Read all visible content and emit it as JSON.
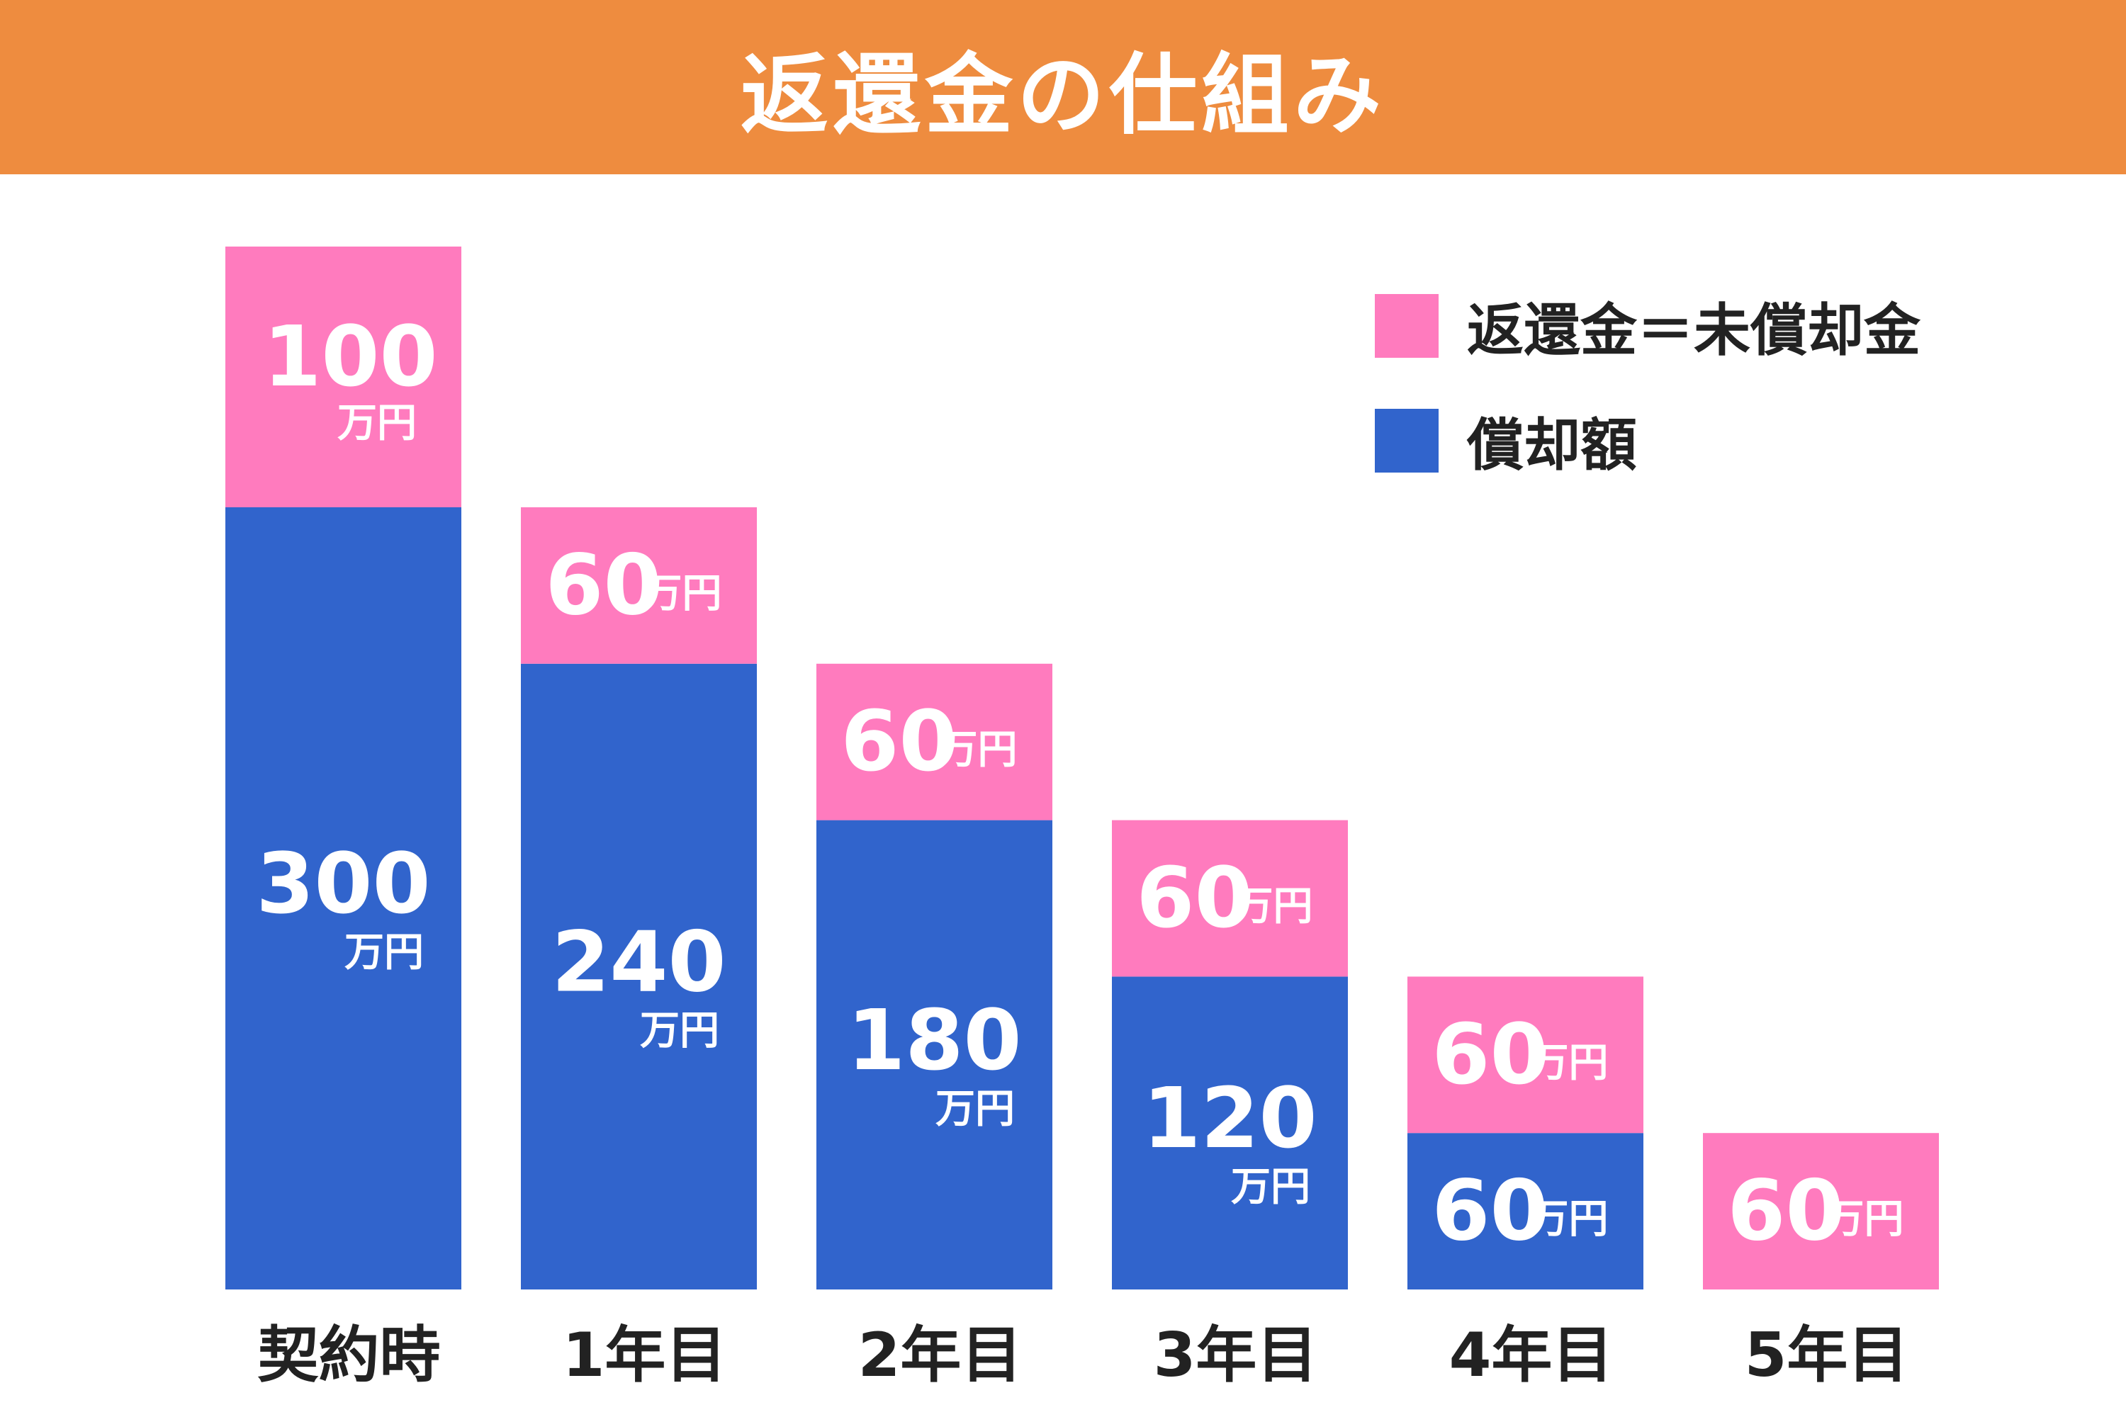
{
  "header": {
    "title": "返還金の仕組み"
  },
  "colors": {
    "header_bg": "#EE8C3F",
    "refund": "#FF7BBE",
    "depreciation": "#3164CC",
    "label_text": "#FFFFFF",
    "axis_text": "#222222"
  },
  "legend": [
    {
      "label": "返還金＝未償却金",
      "color": "#FF7BBE"
    },
    {
      "label": "償却額",
      "color": "#3164CC"
    }
  ],
  "chart_data": {
    "type": "bar",
    "stacked": true,
    "title": "返還金の仕組み",
    "unit": "万円",
    "categories": [
      "契約時",
      "1年目",
      "2年目",
      "3年目",
      "4年目",
      "5年目"
    ],
    "series": [
      {
        "name": "償却額",
        "color": "#3164CC",
        "values": [
          300,
          240,
          180,
          120,
          60,
          0
        ]
      },
      {
        "name": "返還金＝未償却金",
        "color": "#FF7BBE",
        "values": [
          100,
          60,
          60,
          60,
          60,
          60
        ]
      }
    ],
    "legend_position": "top-right",
    "grid": false
  }
}
